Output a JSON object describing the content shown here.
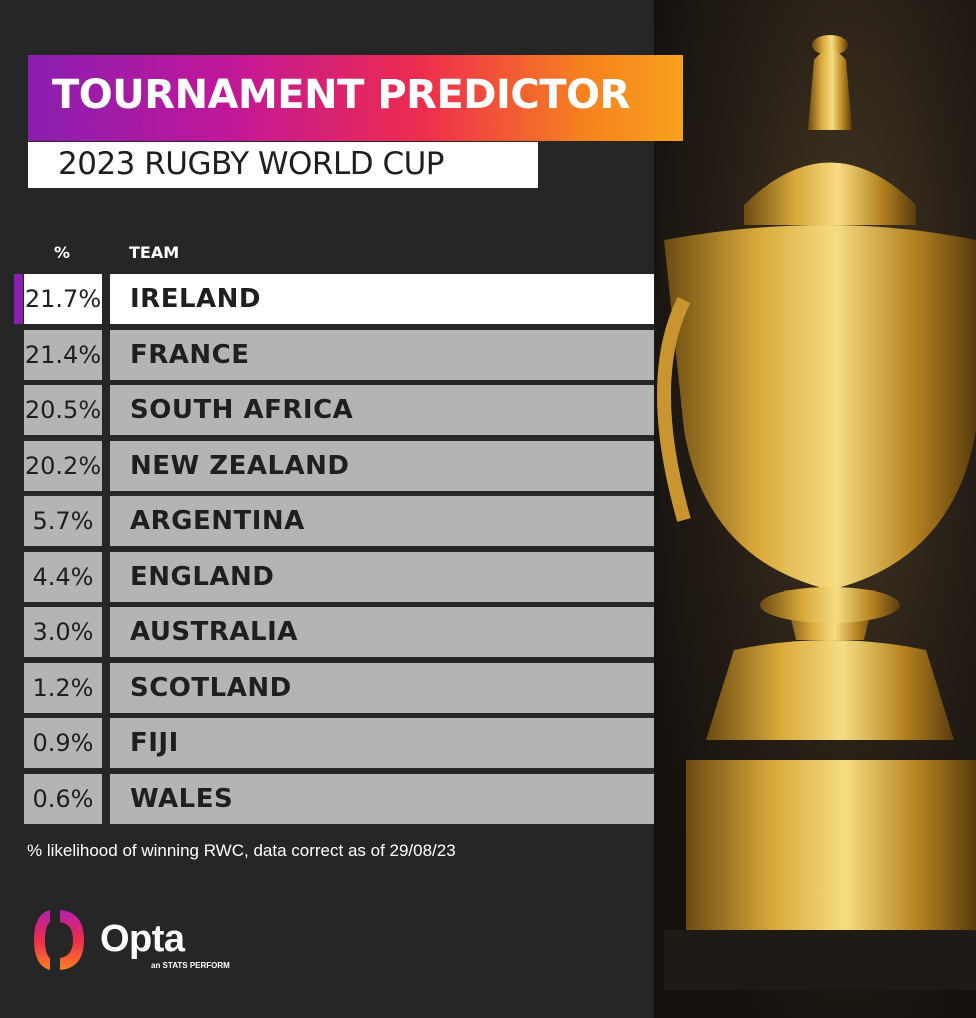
{
  "header": {
    "title": "TOURNAMENT PREDICTOR",
    "subtitle": "2023 RUGBY WORLD CUP"
  },
  "colors": {
    "accent": "#8a1fb0",
    "gradient_start": "#8a1fb0",
    "gradient_end": "#f7a21b",
    "row_bg": "#b4b4b4",
    "top_row_bg": "#ffffff",
    "background": "#262627"
  },
  "chart_data": {
    "type": "table",
    "columns": [
      "%",
      "TEAM"
    ],
    "rows": [
      {
        "pct": "21.7%",
        "team": "IRELAND",
        "value": 21.7
      },
      {
        "pct": "21.4%",
        "team": "FRANCE",
        "value": 21.4
      },
      {
        "pct": "20.5%",
        "team": "SOUTH AFRICA",
        "value": 20.5
      },
      {
        "pct": "20.2%",
        "team": "NEW ZEALAND",
        "value": 20.2
      },
      {
        "pct": "5.7%",
        "team": "ARGENTINA",
        "value": 5.7
      },
      {
        "pct": "4.4%",
        "team": "ENGLAND",
        "value": 4.4
      },
      {
        "pct": "3.0%",
        "team": "AUSTRALIA",
        "value": 3.0
      },
      {
        "pct": "1.2%",
        "team": "SCOTLAND",
        "value": 1.2
      },
      {
        "pct": "0.9%",
        "team": "FIJI",
        "value": 0.9
      },
      {
        "pct": "0.6%",
        "team": "WALES",
        "value": 0.6
      }
    ]
  },
  "footnote": "% likelihood of winning RWC, data correct as of 29/08/23",
  "logo": {
    "name": "Opta",
    "tagline": "an STATS PERFORM"
  },
  "icons": {
    "logo": "opta-logo-icon",
    "trophy": "trophy-image"
  }
}
